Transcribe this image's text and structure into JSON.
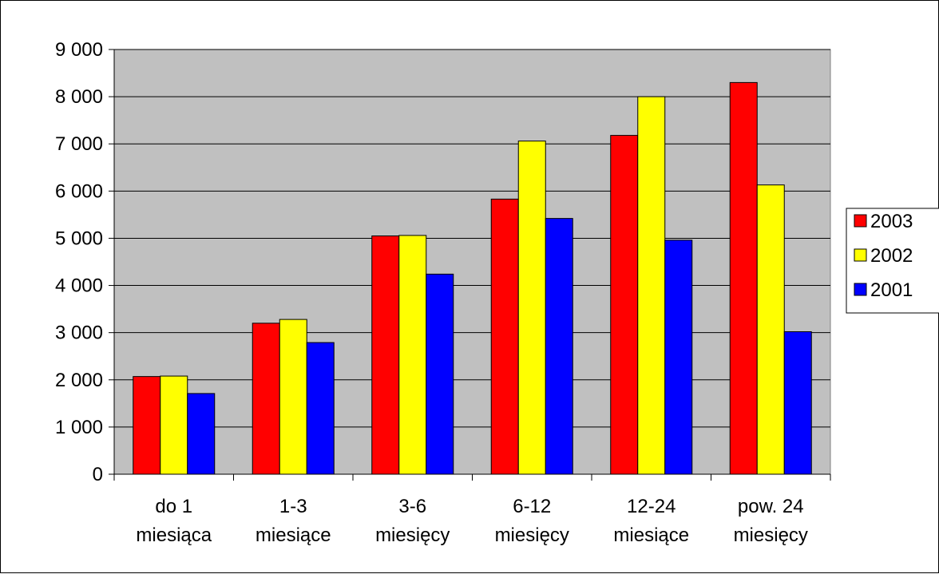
{
  "chart_data": {
    "type": "bar",
    "categories": [
      [
        "do 1",
        "miesiąca"
      ],
      [
        "1-3",
        "miesiące"
      ],
      [
        "3-6",
        "miesięcy"
      ],
      [
        "6-12",
        "miesięcy"
      ],
      [
        "12-24",
        "miesiące"
      ],
      [
        "pow. 24",
        "miesięcy"
      ]
    ],
    "series": [
      {
        "name": "2003",
        "color": "#ff0000",
        "values": [
          2070,
          3200,
          5050,
          5830,
          7180,
          8300
        ]
      },
      {
        "name": "2002",
        "color": "#ffff00",
        "values": [
          2080,
          3280,
          5060,
          7060,
          8000,
          6130
        ]
      },
      {
        "name": "2001",
        "color": "#0000ff",
        "values": [
          1710,
          2790,
          4240,
          5420,
          4960,
          3020
        ]
      }
    ],
    "ylim": [
      0,
      9000
    ],
    "yticks": [
      "0",
      "1 000",
      "2 000",
      "3 000",
      "4 000",
      "5 000",
      "6 000",
      "7 000",
      "8 000",
      "9 000"
    ],
    "grid": true,
    "plot_background": "#c0c0c0",
    "legend_position": "right"
  }
}
